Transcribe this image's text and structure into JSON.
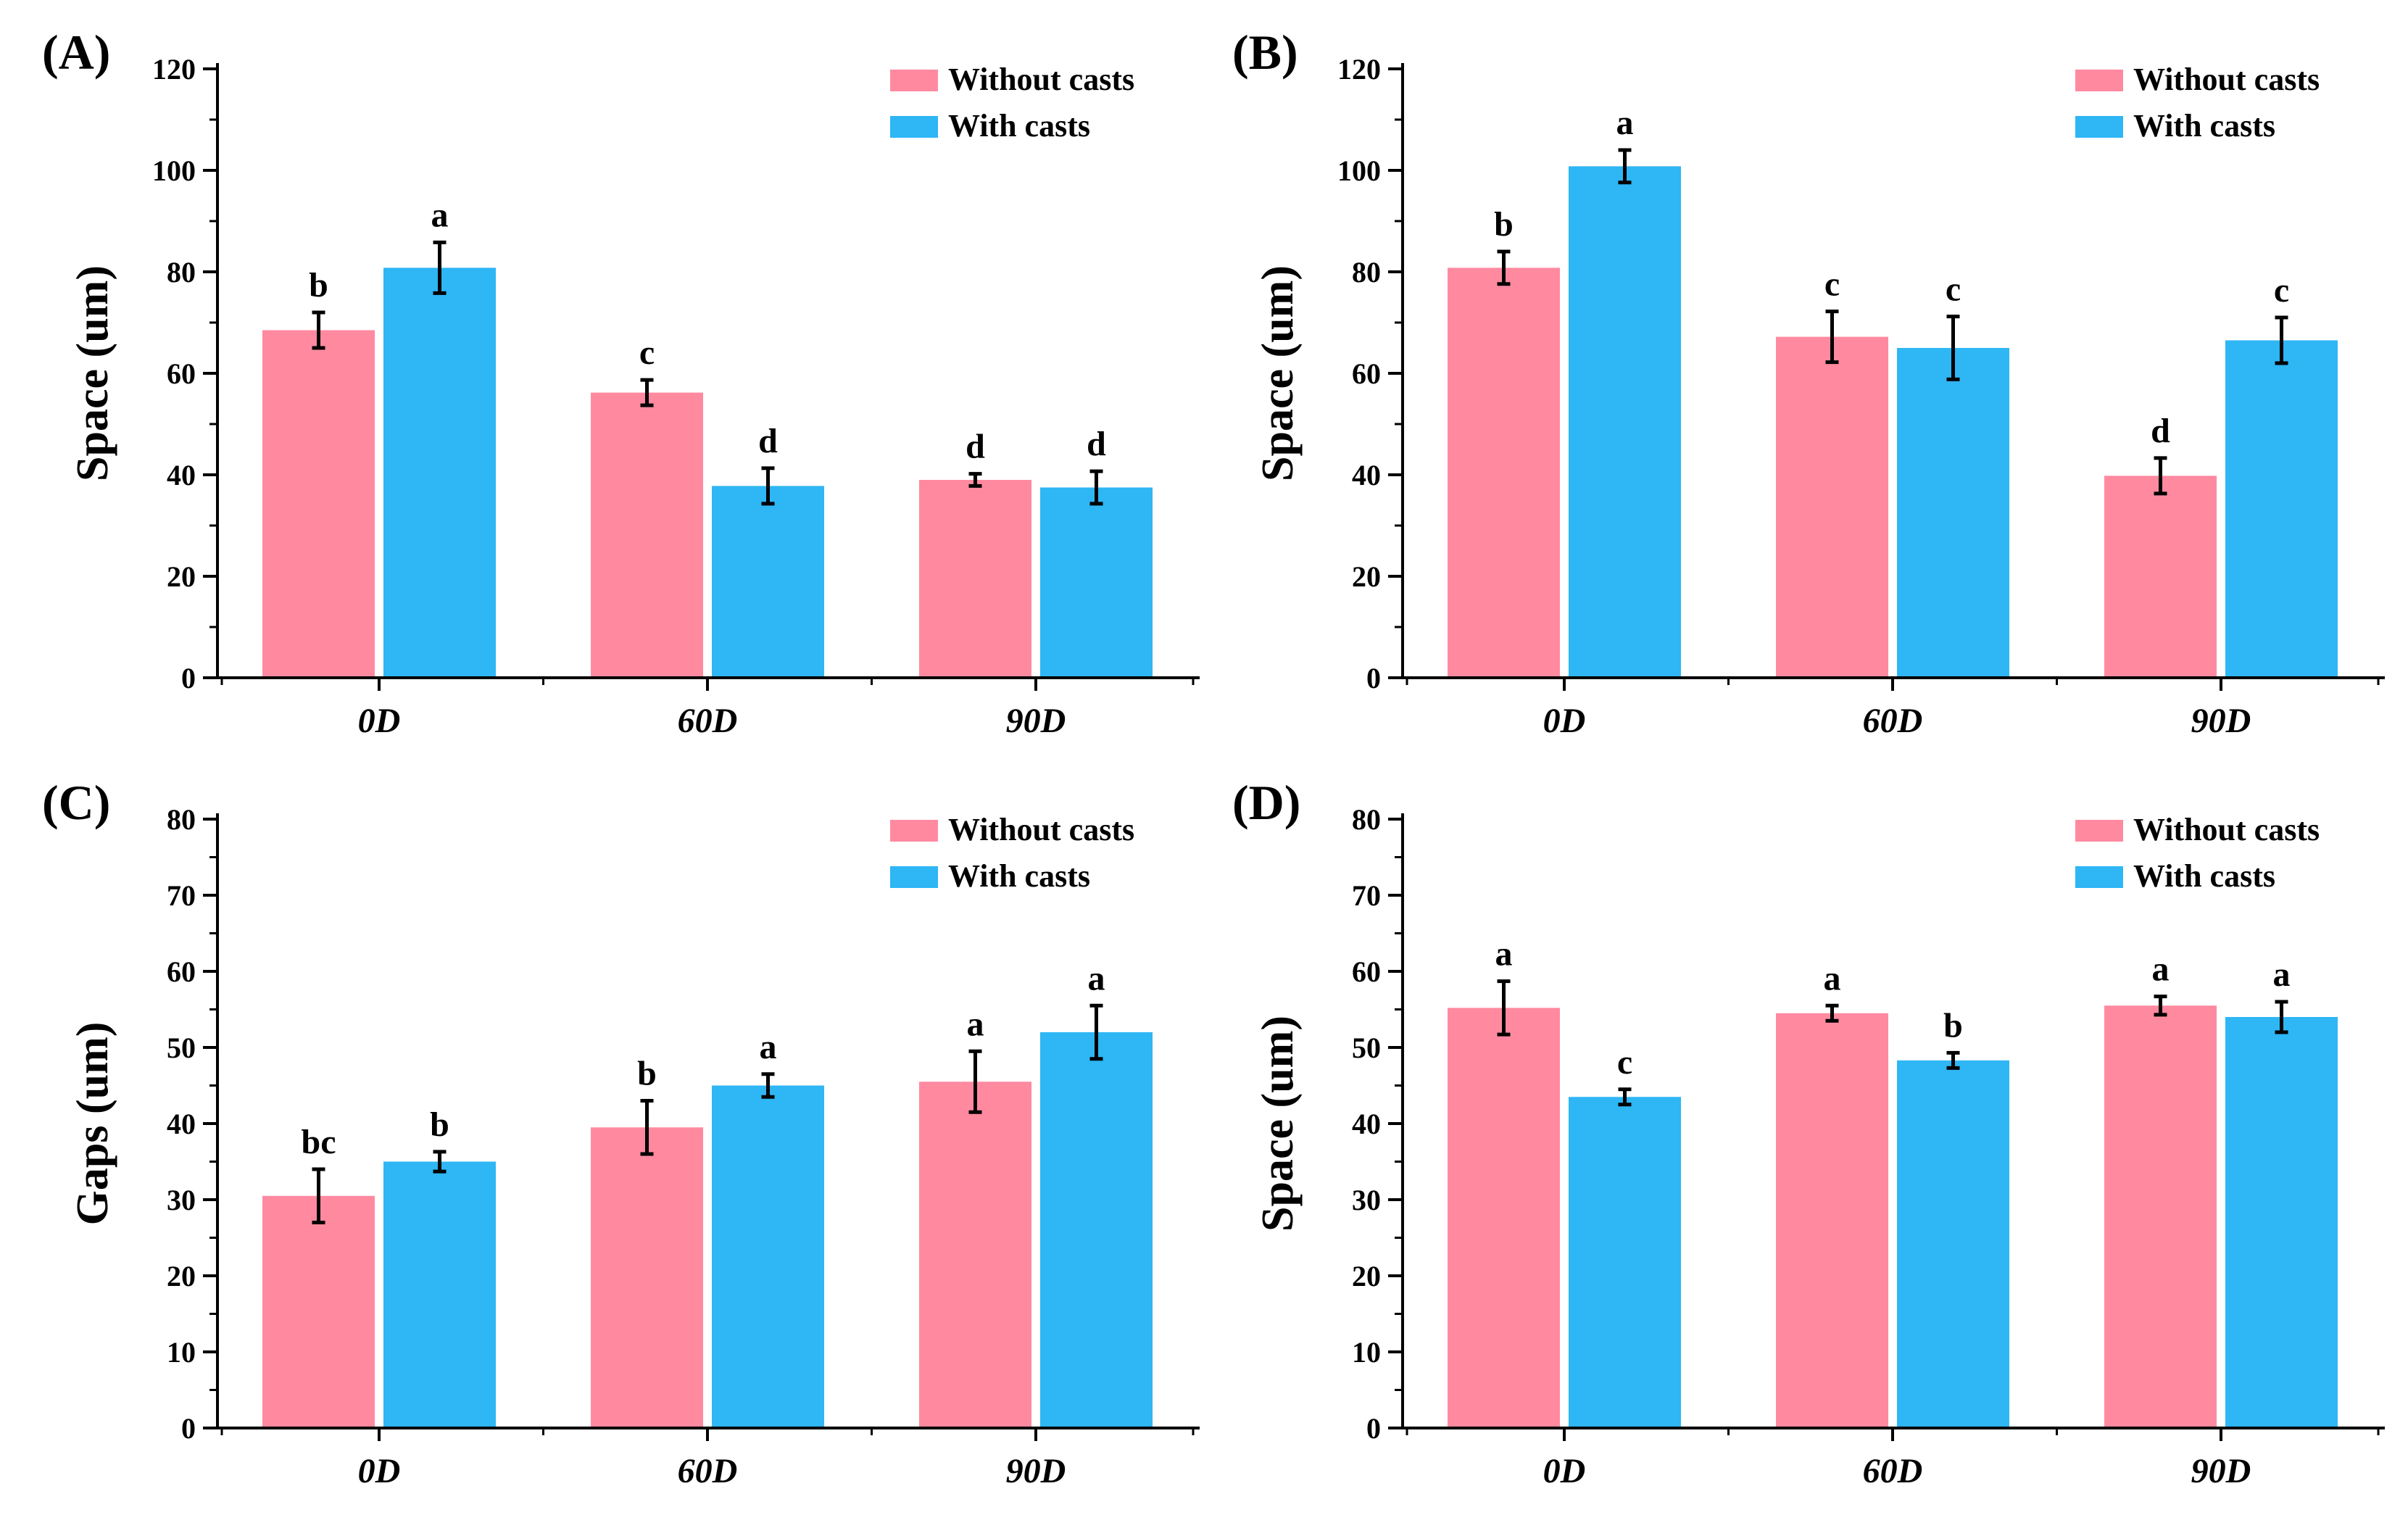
{
  "figure": {
    "colors": {
      "without_casts": "#ff8aa0",
      "with_casts": "#2eb6f5",
      "axis": "#000000"
    }
  },
  "chart_data": [
    {
      "panel": "(A)",
      "type": "bar",
      "ylabel": "Space (um)",
      "xlabel": "",
      "categories": [
        "0D",
        "60D",
        "90D"
      ],
      "ylim": [
        0,
        120
      ],
      "yticks": [
        0,
        20,
        40,
        60,
        80,
        100,
        120
      ],
      "legend_position": "top-right",
      "series": [
        {
          "name": "Without casts",
          "color": "#ff8aa0",
          "values": [
            68.5,
            56.2,
            39.0
          ],
          "errors": [
            3.5,
            2.5,
            1.2
          ],
          "letters": [
            "b",
            "c",
            "d"
          ]
        },
        {
          "name": "With casts",
          "color": "#2eb6f5",
          "values": [
            80.8,
            37.8,
            37.5
          ],
          "errors": [
            5.0,
            3.5,
            3.2
          ],
          "letters": [
            "a",
            "d",
            "d"
          ]
        }
      ]
    },
    {
      "panel": "(B)",
      "type": "bar",
      "ylabel": "Space (um)",
      "xlabel": "",
      "categories": [
        "0D",
        "60D",
        "90D"
      ],
      "ylim": [
        0,
        120
      ],
      "yticks": [
        0,
        20,
        40,
        60,
        80,
        100,
        120
      ],
      "legend_position": "top-right",
      "series": [
        {
          "name": "Without casts",
          "color": "#ff8aa0",
          "values": [
            80.8,
            67.2,
            39.8
          ],
          "errors": [
            3.2,
            5.0,
            3.5
          ],
          "letters": [
            "b",
            "c",
            "d"
          ]
        },
        {
          "name": "With casts",
          "color": "#2eb6f5",
          "values": [
            100.8,
            65.0,
            66.5
          ],
          "errors": [
            3.2,
            6.2,
            4.5
          ],
          "letters": [
            "a",
            "c",
            "c"
          ]
        }
      ]
    },
    {
      "panel": "(C)",
      "type": "bar",
      "ylabel": "Gaps (um)",
      "xlabel": "",
      "categories": [
        "0D",
        "60D",
        "90D"
      ],
      "ylim": [
        0,
        80
      ],
      "yticks": [
        0,
        10,
        20,
        30,
        40,
        50,
        60,
        70,
        80
      ],
      "legend_position": "top-right",
      "series": [
        {
          "name": "Without casts",
          "color": "#ff8aa0",
          "values": [
            30.5,
            39.5,
            45.5
          ],
          "errors": [
            3.5,
            3.5,
            4.0
          ],
          "letters": [
            "bc",
            "b",
            "a"
          ]
        },
        {
          "name": "With casts",
          "color": "#2eb6f5",
          "values": [
            35.0,
            45.0,
            52.0
          ],
          "errors": [
            1.3,
            1.5,
            3.5
          ],
          "letters": [
            "b",
            "a",
            "a"
          ]
        }
      ]
    },
    {
      "panel": "(D)",
      "type": "bar",
      "ylabel": "Space (um)",
      "xlabel": "",
      "categories": [
        "0D",
        "60D",
        "90D"
      ],
      "ylim": [
        0,
        80
      ],
      "yticks": [
        0,
        10,
        20,
        30,
        40,
        50,
        60,
        70,
        80
      ],
      "legend_position": "top-right",
      "series": [
        {
          "name": "Without casts",
          "color": "#ff8aa0",
          "values": [
            55.2,
            54.5,
            55.5
          ],
          "errors": [
            3.5,
            1.0,
            1.2
          ],
          "letters": [
            "a",
            "a",
            "a"
          ]
        },
        {
          "name": "With casts",
          "color": "#2eb6f5",
          "values": [
            43.5,
            48.3,
            54.0
          ],
          "errors": [
            1.0,
            1.0,
            2.0
          ],
          "letters": [
            "c",
            "b",
            "a"
          ]
        }
      ]
    }
  ]
}
